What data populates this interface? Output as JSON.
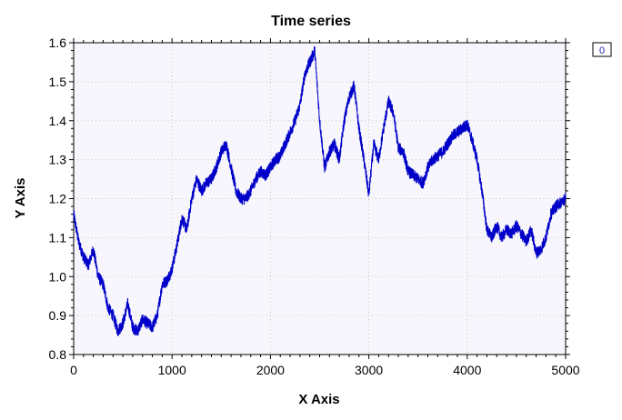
{
  "chart_data": {
    "type": "line",
    "title": "Time series",
    "xlabel": "X Axis",
    "ylabel": "Y Axis",
    "xlim": [
      0,
      5000
    ],
    "ylim": [
      0.8,
      1.6
    ],
    "x_ticks": [
      "0",
      "1000",
      "2000",
      "3000",
      "4000",
      "5000"
    ],
    "y_ticks": [
      "0.8",
      "0.9",
      "1.0",
      "1.1",
      "1.2",
      "1.3",
      "1.4",
      "1.5",
      "1.6"
    ],
    "grid": true,
    "legend": "top-right",
    "series": [
      {
        "name": "0",
        "color": "#0000c8",
        "x": [
          0,
          50,
          100,
          150,
          200,
          250,
          300,
          350,
          400,
          450,
          500,
          550,
          600,
          650,
          700,
          750,
          800,
          850,
          900,
          950,
          1000,
          1050,
          1100,
          1150,
          1200,
          1250,
          1300,
          1350,
          1400,
          1450,
          1500,
          1550,
          1600,
          1650,
          1700,
          1750,
          1800,
          1850,
          1900,
          1950,
          2000,
          2050,
          2100,
          2150,
          2200,
          2250,
          2300,
          2350,
          2400,
          2450,
          2500,
          2550,
          2600,
          2650,
          2700,
          2750,
          2800,
          2850,
          2900,
          2950,
          3000,
          3050,
          3100,
          3150,
          3200,
          3250,
          3300,
          3350,
          3400,
          3450,
          3500,
          3550,
          3600,
          3650,
          3700,
          3750,
          3800,
          3850,
          3900,
          3950,
          4000,
          4050,
          4100,
          4150,
          4200,
          4250,
          4300,
          4350,
          4400,
          4450,
          4500,
          4550,
          4600,
          4650,
          4700,
          4750,
          4800,
          4850,
          4900,
          4950,
          5000
        ],
        "y": [
          1.16,
          1.09,
          1.05,
          1.03,
          1.07,
          1.0,
          0.98,
          0.92,
          0.9,
          0.86,
          0.88,
          0.93,
          0.87,
          0.86,
          0.89,
          0.88,
          0.87,
          0.9,
          0.98,
          0.99,
          1.02,
          1.08,
          1.15,
          1.12,
          1.2,
          1.25,
          1.22,
          1.24,
          1.25,
          1.28,
          1.32,
          1.34,
          1.28,
          1.22,
          1.2,
          1.2,
          1.22,
          1.25,
          1.27,
          1.26,
          1.28,
          1.3,
          1.31,
          1.34,
          1.37,
          1.4,
          1.44,
          1.52,
          1.55,
          1.58,
          1.4,
          1.28,
          1.32,
          1.34,
          1.3,
          1.4,
          1.46,
          1.49,
          1.38,
          1.3,
          1.21,
          1.34,
          1.3,
          1.38,
          1.45,
          1.42,
          1.33,
          1.32,
          1.27,
          1.26,
          1.25,
          1.24,
          1.28,
          1.3,
          1.31,
          1.32,
          1.34,
          1.36,
          1.37,
          1.38,
          1.39,
          1.35,
          1.3,
          1.22,
          1.12,
          1.1,
          1.13,
          1.1,
          1.12,
          1.11,
          1.13,
          1.11,
          1.09,
          1.12,
          1.06,
          1.07,
          1.1,
          1.16,
          1.18,
          1.19,
          1.2
        ]
      }
    ]
  }
}
